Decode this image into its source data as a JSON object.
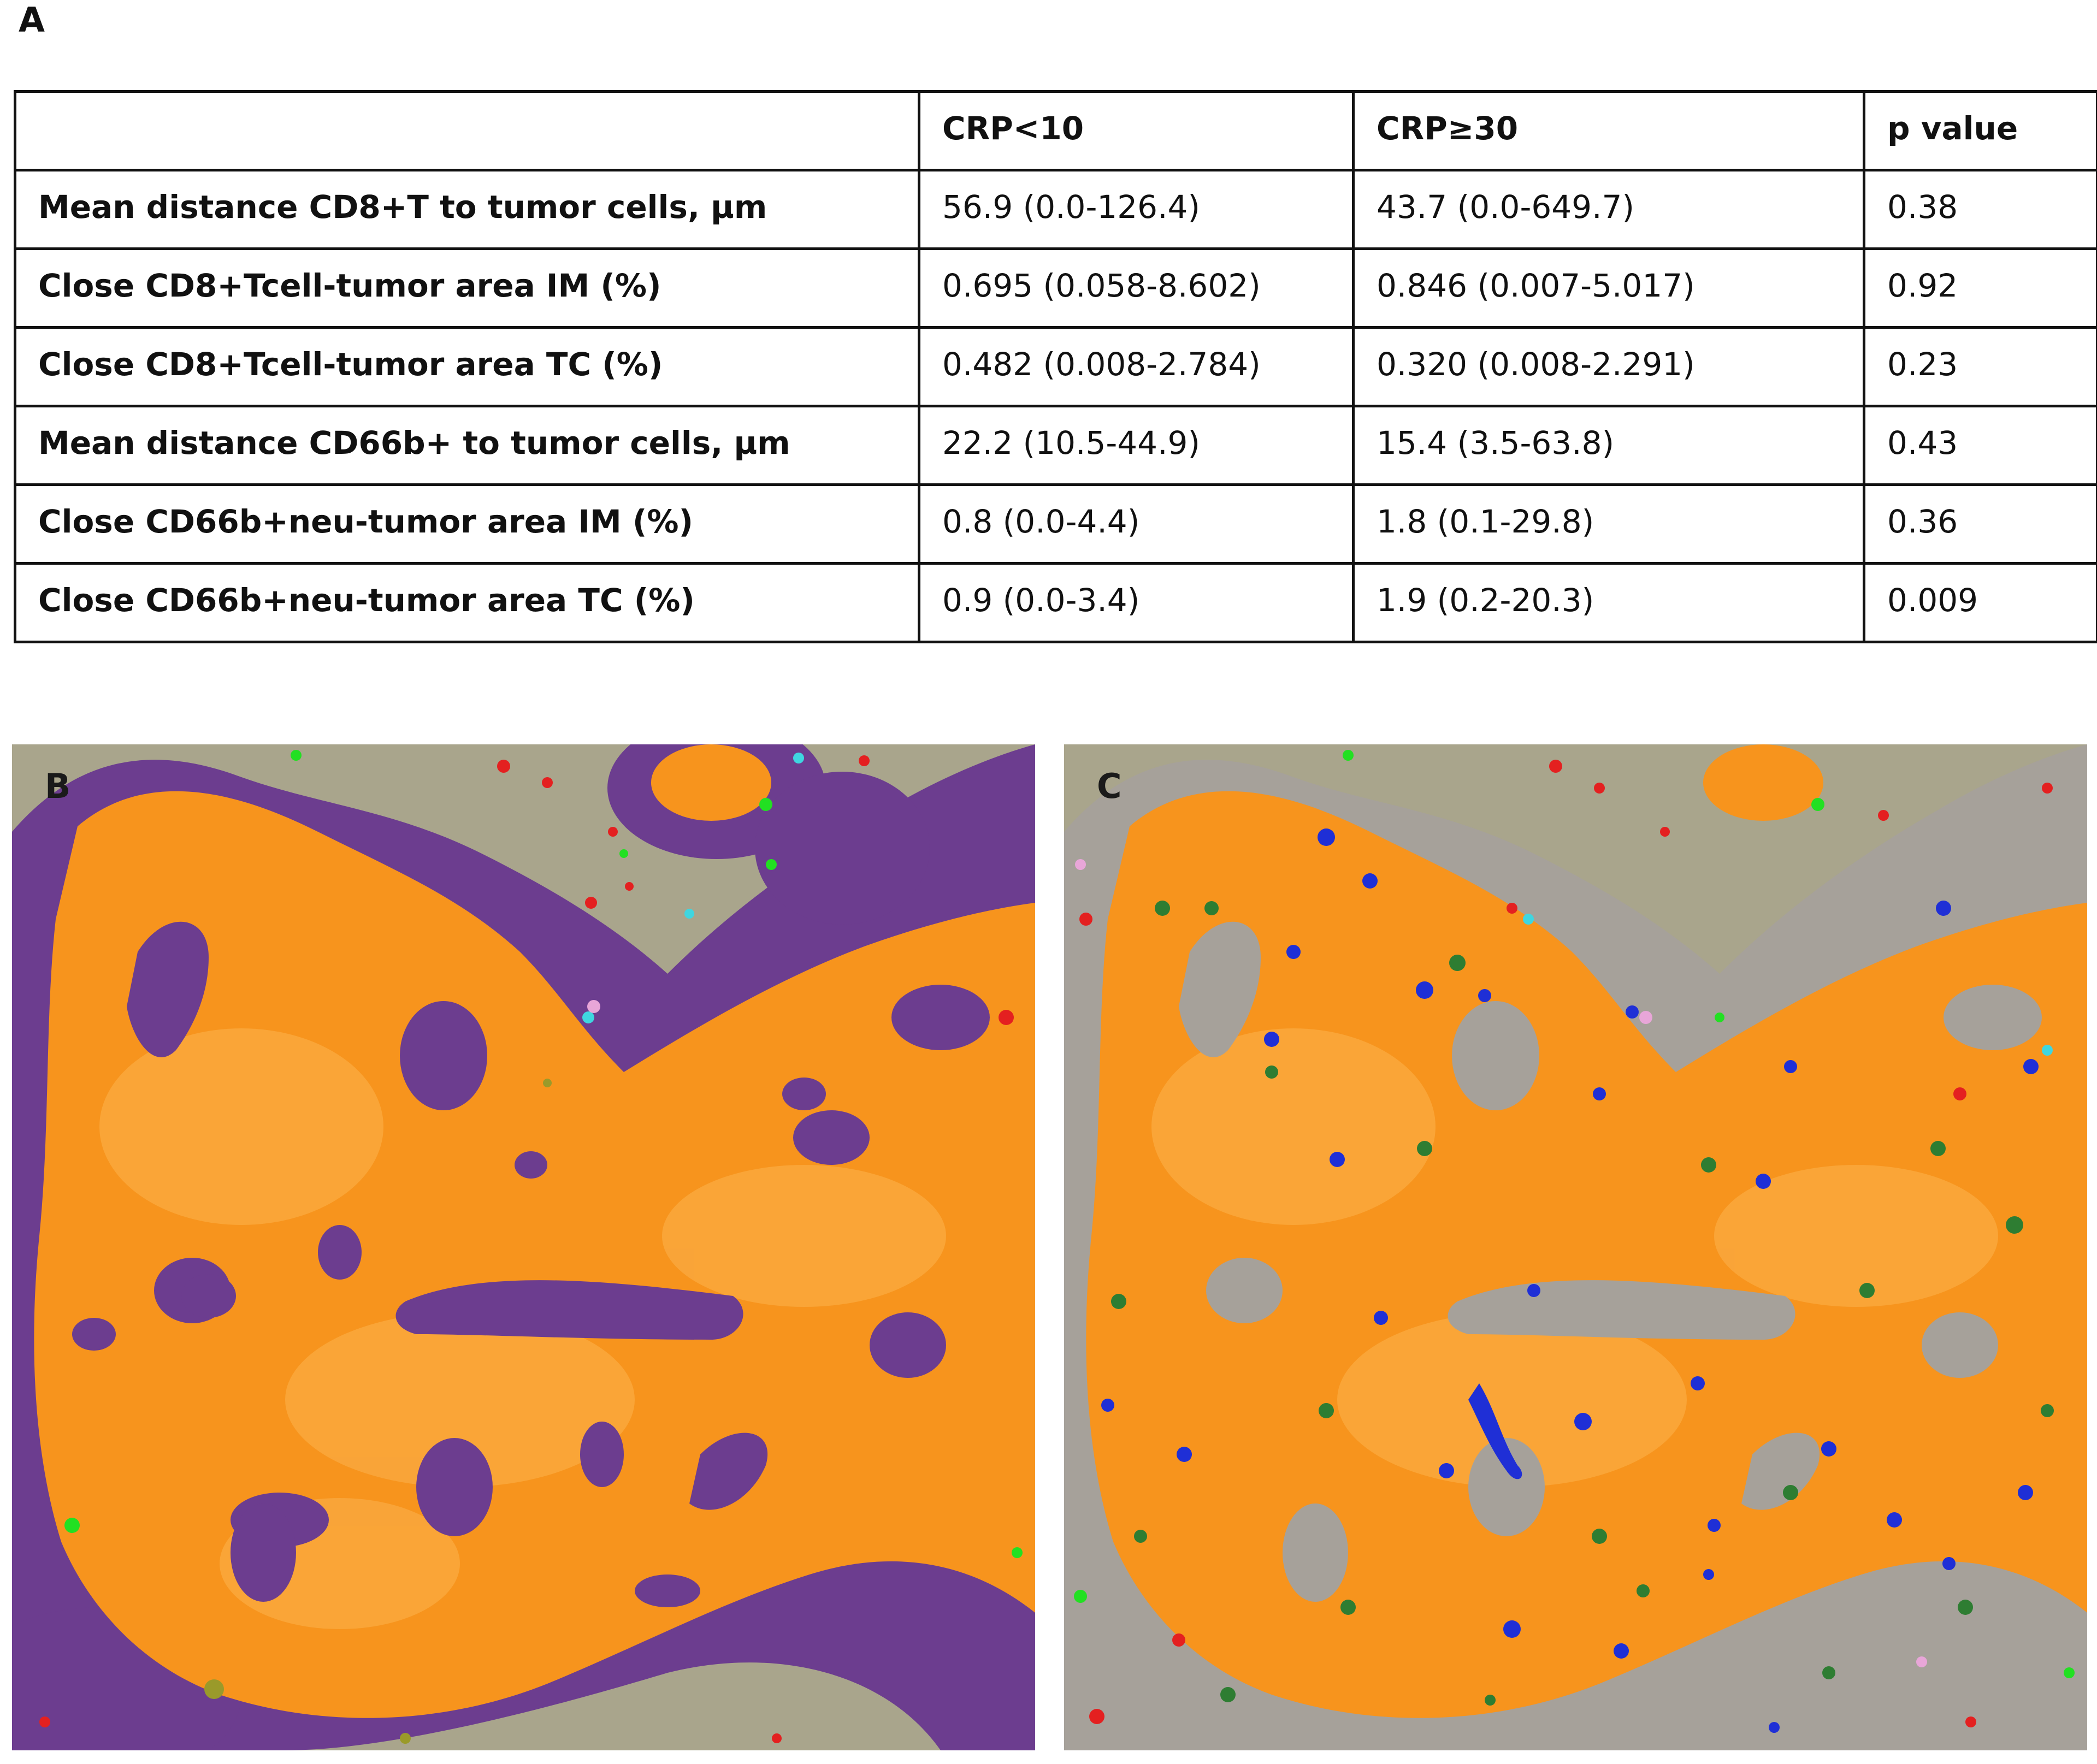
{
  "panel_a": {
    "label": "A",
    "headers": [
      "",
      "CRP<10",
      "CRP≥30",
      "p value"
    ],
    "rows": [
      [
        "Mean distance CD8+T to tumor cells, µm",
        "56.9 (0.0-126.4)",
        "43.7 (0.0-649.7)",
        "0.38"
      ],
      [
        "Close CD8+Tcell-tumor area IM (%)",
        "0.695  (0.058-8.602)",
        "0.846  (0.007-5.017)",
        "0.92"
      ],
      [
        "Close CD8+Tcell-tumor area TC (%)",
        "0.482  (0.008-2.784)",
        "0.320  (0.008-2.291)",
        "0.23"
      ],
      [
        "Mean distance CD66b+ to tumor cells, µm",
        "22.2 (10.5-44.9)",
        "15.4 (3.5-63.8)",
        "0.43"
      ],
      [
        "Close CD66b+neu-tumor area IM (%)",
        "0.8 (0.0-4.4)",
        "1.8 (0.1-29.8)",
        "0.36"
      ],
      [
        "Close CD66b+neu-tumor area TC (%)",
        "0.9 (0.0-3.4)",
        "1.9 (0.2-20.3)",
        "0.009"
      ]
    ]
  },
  "panel_b": {
    "label": "B"
  },
  "panel_c": {
    "label": "C"
  },
  "colors": {
    "tumor": "#f7941d",
    "tumor_light": "#fbb04a",
    "stroma": "#a9a58c",
    "invasive_margin": "#6c3d8f",
    "stroma_gray": "#a6a19a",
    "cd8_blue": "#1f2fd6",
    "cd66b_green": "#2e7d32",
    "bright_green": "#22e022",
    "red_cells": "#e42020",
    "cyan_cells": "#3fd6e0",
    "pink_cells": "#e8a6d8"
  }
}
